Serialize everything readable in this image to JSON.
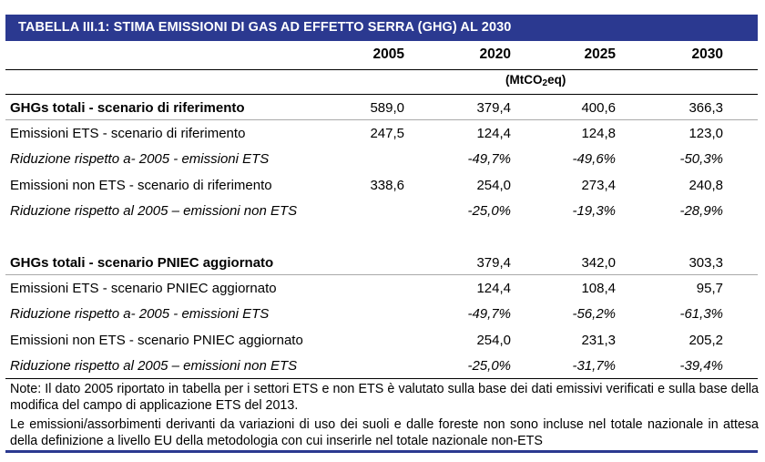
{
  "title": "TABELLA III.1: STIMA EMISSIONI DI GAS AD EFFETTO SERRA (GHG) AL 2030",
  "columns": [
    "2005",
    "2020",
    "2025",
    "2030"
  ],
  "unit_prefix": "(MtCO",
  "unit_sub": "2",
  "unit_suffix": "eq)",
  "rows": [
    {
      "label": "GHGs totali - scenario di riferimento",
      "values": [
        "589,0",
        "379,4",
        "400,6",
        "366,3"
      ]
    },
    {
      "label": "Emissioni ETS - scenario di riferimento",
      "values": [
        "247,5",
        "124,4",
        "124,8",
        "123,0"
      ]
    },
    {
      "label": "Riduzione rispetto a- 2005 - emissioni ETS",
      "values": [
        "",
        "-49,7%",
        "-49,6%",
        "-50,3%"
      ]
    },
    {
      "label": "Emissioni non ETS - scenario di riferimento",
      "values": [
        "338,6",
        "254,0",
        "273,4",
        "240,8"
      ]
    },
    {
      "label": "Riduzione rispetto al 2005 – emissioni non ETS",
      "values": [
        "",
        "-25,0%",
        "-19,3%",
        "-28,9%"
      ]
    },
    {
      "label": "GHGs totali - scenario PNIEC aggiornato",
      "values": [
        "",
        "379,4",
        "342,0",
        "303,3"
      ]
    },
    {
      "label": "Emissioni ETS - scenario PNIEC aggiornato",
      "values": [
        "",
        "124,4",
        "108,4",
        "95,7"
      ]
    },
    {
      "label": "Riduzione rispetto a- 2005 - emissioni ETS",
      "values": [
        "",
        "-49,7%",
        "-56,2%",
        "-61,3%"
      ]
    },
    {
      "label": "Emissioni non ETS - scenario PNIEC aggiornato",
      "values": [
        "",
        "254,0",
        "231,3",
        "205,2"
      ]
    },
    {
      "label": "Riduzione rispetto al 2005 – emissioni non ETS",
      "values": [
        "",
        "-25,0%",
        "-31,7%",
        "-39,4%"
      ]
    }
  ],
  "notes": [
    "Note: Il dato 2005 riportato in tabella per i settori ETS e non ETS è valutato sulla base dei dati emissivi verificati e sulla base della modifica del campo di applicazione ETS del 2013.",
    "Le emissioni/assorbimenti derivanti da variazioni di uso dei suoli e dalle foreste non sono incluse nel totale nazionale in attesa della definizione a livello EU della metodologia con cui inserirle nel totale nazionale non-ETS"
  ]
}
